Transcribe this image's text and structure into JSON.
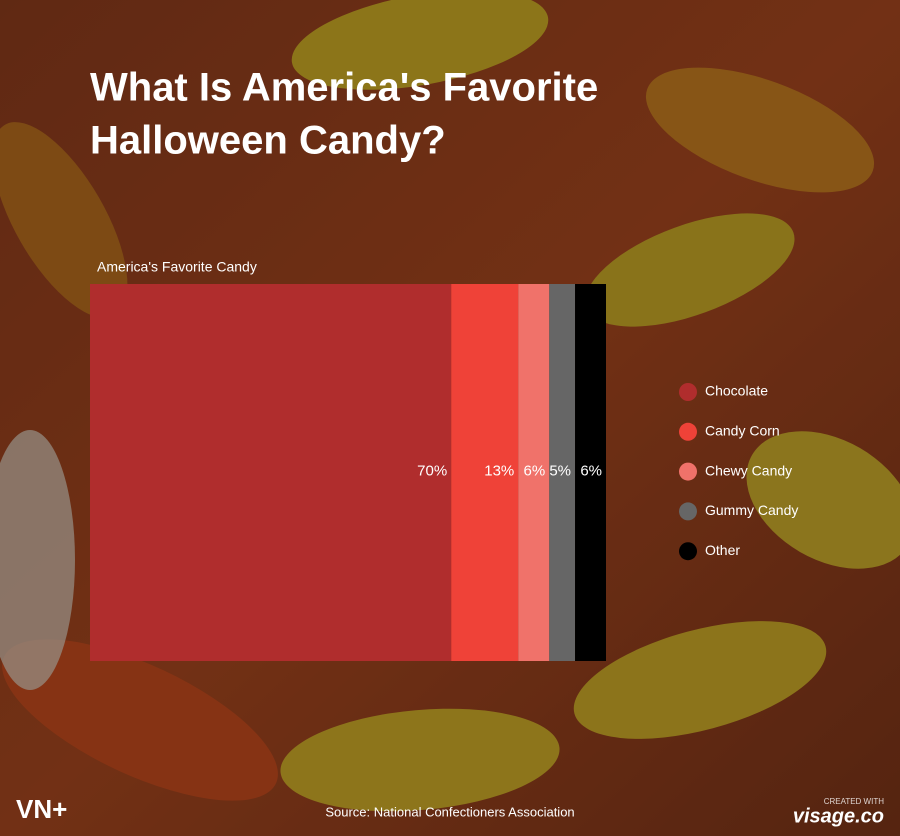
{
  "chart_data": {
    "type": "stacked-bar",
    "title": [
      "What Is America's Favorite",
      "Halloween Candy?"
    ],
    "subtitle": "America's Favorite Candy",
    "categories": [
      null
    ],
    "series": [
      {
        "name": "Chocolate",
        "color": "#b02d2d",
        "values": [
          70
        ],
        "value_labels": [
          "70%"
        ]
      },
      {
        "name": "Candy Corn",
        "color": "#ef4238",
        "values": [
          13
        ],
        "value_labels": [
          "13%"
        ]
      },
      {
        "name": "Chewy Candy",
        "color": "#f0726a",
        "values": [
          6
        ],
        "value_labels": [
          "6%"
        ]
      },
      {
        "name": "Gummy Candy",
        "color": "#666666",
        "values": [
          5
        ],
        "value_labels": [
          "5%"
        ]
      },
      {
        "name": "Other",
        "color": "#000000",
        "values": [
          6
        ],
        "value_labels": [
          "6%"
        ]
      }
    ],
    "legend": "right"
  },
  "footer": {
    "source": "Source: National Confectioners Association",
    "logo": "VN+",
    "credit": "CREATED WITH",
    "brand": "visage.co"
  }
}
